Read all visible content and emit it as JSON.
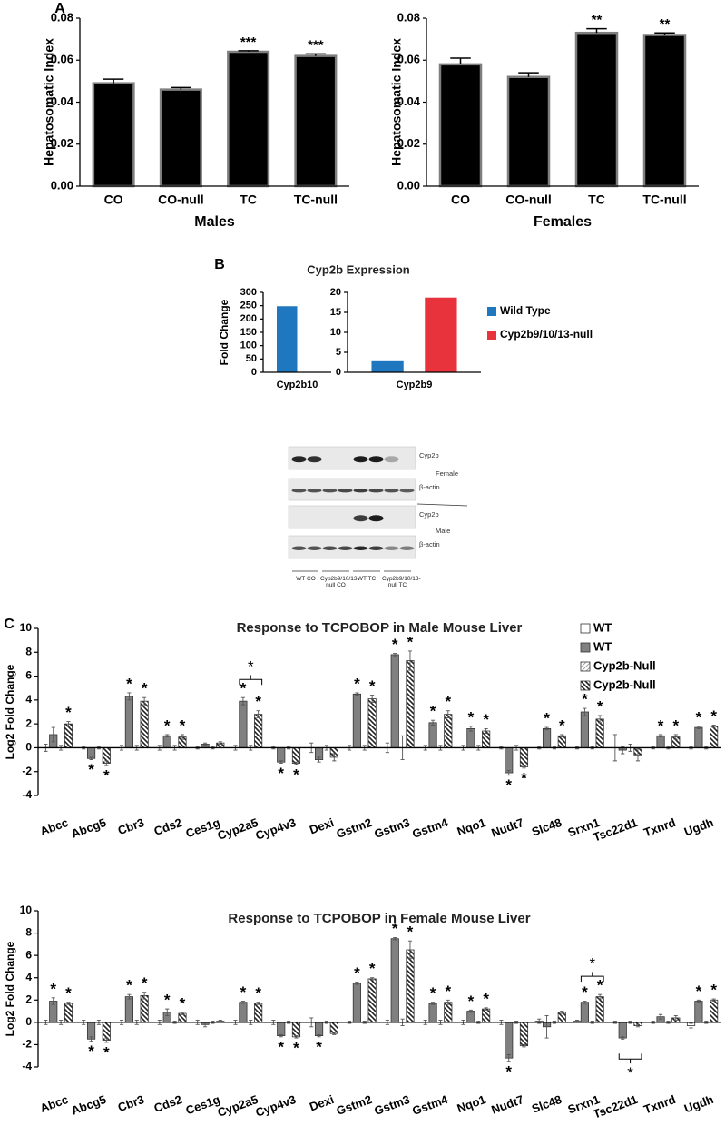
{
  "chart_data": [
    {
      "type": "bar",
      "panel_label": "A",
      "ylabel": "Hepatosomatic Index",
      "xlabel": "Males",
      "categories": [
        "CO",
        "CO-null",
        "TC",
        "TC-null"
      ],
      "values": [
        0.049,
        0.046,
        0.064,
        0.062
      ],
      "errors": [
        0.002,
        0.001,
        0.0005,
        0.001
      ],
      "significance": [
        null,
        null,
        "***",
        "***"
      ],
      "color": "#000000",
      "ylim": [
        0,
        0.08
      ],
      "yticks": [
        {
          "value": 0,
          "label": "0.00"
        },
        0.02,
        0.04,
        0.06,
        0.08
      ]
    },
    {
      "type": "bar",
      "ylabel": "Hepatosomatic Index",
      "xlabel": "Females",
      "categories": [
        "CO",
        "CO-null",
        "TC",
        "TC-null"
      ],
      "values": [
        0.058,
        0.052,
        0.073,
        0.072
      ],
      "errors": [
        0.003,
        0.002,
        0.002,
        0.001
      ],
      "significance": [
        null,
        null,
        "**",
        "**"
      ],
      "color": "#000000",
      "ylim": [
        0,
        0.08
      ],
      "yticks": [
        {
          "value": 0,
          "label": "0.00"
        },
        0.02,
        0.04,
        0.06,
        0.08
      ]
    },
    {
      "type": "bar",
      "panel_label": "B",
      "title": "Cyp2b Expression",
      "ylabel": "Fold Change",
      "categories": [
        "Cyp2b10"
      ],
      "series": [
        {
          "color": "#1f77c0",
          "values": [
            248
          ]
        },
        {
          "color": "#e8333c",
          "values": [
            0
          ]
        }
      ],
      "ylim": [
        0,
        300
      ],
      "yticks": [
        0,
        50,
        100,
        150,
        200,
        250,
        300
      ]
    },
    {
      "type": "bar",
      "categories": [
        "Cyp2b9"
      ],
      "legend": "right",
      "series": [
        {
          "name": "Wild Type",
          "color": "#1f77c0",
          "values": [
            3
          ]
        },
        {
          "name": "Cyp2b9/10/13-null",
          "color": "#e8333c",
          "values": [
            18.7
          ]
        }
      ],
      "ylim": [
        0,
        20
      ],
      "yticks": [
        0,
        5,
        10,
        15,
        20
      ]
    },
    {
      "type": "bar",
      "panel_label": "C",
      "title": "Response to TCPOBOP in Male Mouse Liver",
      "ylabel": "Log2 Fold Change",
      "legend": "top-right",
      "categories": [
        "Abcc",
        "Abcg5",
        "Cbr3",
        "Cds2",
        "Ces1g",
        "Cyp2a5",
        "Cyp4v3",
        "Dexi",
        "Gstm2",
        "Gstm3",
        "Gstm4",
        "Nqo1",
        "Nudt7",
        "Slc48",
        "Srxn1",
        "Tsc22d1",
        "Txnrd",
        "Ugdh"
      ],
      "series": [
        {
          "name": "WT",
          "color": "#ffffff",
          "values": [
            0,
            0,
            0,
            0,
            0,
            0,
            0,
            0,
            0,
            0,
            0,
            0,
            0,
            0,
            0,
            0,
            0,
            0
          ],
          "errors": [
            0.3,
            0.1,
            0.2,
            0.2,
            0.1,
            0.2,
            0.1,
            0.4,
            0.2,
            0.4,
            0.2,
            0.2,
            0.1,
            0.1,
            0.1,
            1.1,
            0.1,
            0.1
          ]
        },
        {
          "name": "WT",
          "color": "#808080",
          "values": [
            1.1,
            -0.9,
            4.3,
            1.0,
            0.3,
            3.9,
            -1.2,
            -1.0,
            4.5,
            7.8,
            2.1,
            1.6,
            -2.1,
            1.6,
            3.0,
            -0.2,
            1.0,
            1.7
          ],
          "errors": [
            0.6,
            0.1,
            0.3,
            0.1,
            0.1,
            0.3,
            0.1,
            0.2,
            0.1,
            0.1,
            0.2,
            0.2,
            0.2,
            0.1,
            0.3,
            0.3,
            0.1,
            0.1
          ],
          "significance": [
            null,
            "*",
            "*",
            "*",
            null,
            "*",
            "*",
            null,
            "*",
            "*",
            "*",
            "*",
            "*",
            "*",
            "*",
            null,
            "*",
            "*"
          ]
        },
        {
          "name": "Cyp2b-Null",
          "color": "#999999",
          "hatch": "/",
          "values": [
            0,
            0,
            0,
            0,
            0,
            0,
            0,
            0,
            0,
            0,
            0,
            0,
            0,
            0,
            0,
            0,
            0,
            0
          ],
          "errors": [
            0.2,
            0.1,
            0.2,
            0.2,
            0.1,
            0.2,
            0.1,
            0.2,
            0.2,
            1.0,
            0.2,
            0.2,
            0.2,
            0.1,
            0.1,
            0.3,
            0.1,
            0.1
          ]
        },
        {
          "name": "Cyp2b-Null",
          "color": "#222222",
          "hatch": "\\",
          "values": [
            2.0,
            -1.3,
            3.9,
            0.9,
            0.4,
            2.8,
            -1.3,
            -0.8,
            4.1,
            7.3,
            2.8,
            1.4,
            -1.6,
            1.0,
            2.4,
            -0.6,
            0.9,
            1.8
          ],
          "errors": [
            0.2,
            0.2,
            0.3,
            0.2,
            0.1,
            0.3,
            0.1,
            0.3,
            0.3,
            0.8,
            0.3,
            0.2,
            0.1,
            0.1,
            0.3,
            0.5,
            0.2,
            0.1
          ],
          "significance": [
            "*",
            "*",
            "*",
            "*",
            null,
            "*",
            "*",
            null,
            "*",
            "*",
            "*",
            "*",
            "*",
            "*",
            "*",
            null,
            "*",
            "*"
          ]
        }
      ],
      "bracket_significance": [
        null,
        null,
        null,
        null,
        null,
        "*",
        null,
        null,
        null,
        null,
        null,
        null,
        null,
        null,
        null,
        null,
        null,
        null
      ],
      "ylim": [
        -4,
        10
      ],
      "yticks": [
        -4,
        -2,
        0,
        2,
        4,
        6,
        8,
        10
      ]
    },
    {
      "type": "bar",
      "title": "Response to TCPOBOP in Female Mouse Liver",
      "ylabel": "Log2 Fold Change",
      "categories": [
        "Abcc",
        "Abcg5",
        "Cbr3",
        "Cds2",
        "Ces1g",
        "Cyp2a5",
        "Cyp4v3",
        "Dexi",
        "Gstm2",
        "Gstm3",
        "Gstm4",
        "Nqo1",
        "Nudt7",
        "Slc48",
        "Srxn1",
        "Tsc22d1",
        "Txnrd",
        "Ugdh"
      ],
      "series": [
        {
          "color": "#ffffff",
          "values": [
            0,
            0,
            0,
            0,
            0,
            0,
            0,
            0,
            0,
            0,
            0,
            0,
            0,
            0.1,
            0.1,
            0,
            0,
            -0.3
          ],
          "errors": [
            0.2,
            0.2,
            0.2,
            0.2,
            0.2,
            0.2,
            0.2,
            0.4,
            0.1,
            0.2,
            0.2,
            0.2,
            0.2,
            0.2,
            0.1,
            0.1,
            0.1,
            0.2
          ]
        },
        {
          "color": "#808080",
          "values": [
            1.9,
            -1.5,
            2.3,
            0.9,
            -0.2,
            1.8,
            -1.2,
            -1.2,
            3.5,
            7.5,
            1.7,
            1.0,
            -3.2,
            -0.4,
            1.8,
            -1.4,
            0.5,
            1.9
          ],
          "errors": [
            0.3,
            0.2,
            0.2,
            0.3,
            0.2,
            0.1,
            0.1,
            0.1,
            0.1,
            0.1,
            0.1,
            0.1,
            0.3,
            1.0,
            0.1,
            0.1,
            0.2,
            0.1
          ],
          "significance": [
            "*",
            "*",
            "*",
            "*",
            null,
            "*",
            "*",
            "*",
            "*",
            "*",
            "*",
            "*",
            "*",
            null,
            "*",
            null,
            null,
            "*"
          ]
        },
        {
          "color": "#999999",
          "hatch": "/",
          "values": [
            0,
            0,
            0,
            0,
            0,
            0,
            0,
            0,
            0,
            0,
            0,
            0,
            0,
            0,
            0,
            0,
            0,
            0
          ],
          "errors": [
            0.2,
            0.2,
            0.2,
            0.1,
            0.1,
            0.2,
            0.1,
            0.1,
            0.1,
            0.3,
            0.2,
            0.1,
            0.1,
            0.1,
            0.1,
            0.1,
            0.1,
            0.1
          ]
        },
        {
          "color": "#222222",
          "hatch": "\\",
          "values": [
            1.7,
            -1.6,
            2.4,
            0.8,
            0.1,
            1.7,
            -1.3,
            -1.0,
            3.9,
            6.5,
            1.8,
            1.2,
            -2.1,
            0.9,
            2.3,
            -0.3,
            0.4,
            2.0
          ],
          "errors": [
            0.1,
            0.2,
            0.3,
            0.1,
            0.1,
            0.1,
            0.1,
            0.1,
            0.1,
            0.8,
            0.2,
            0.1,
            0.1,
            0.1,
            0.2,
            0.1,
            0.2,
            0.1
          ],
          "significance": [
            "*",
            "*",
            "*",
            "*",
            null,
            "*",
            "*",
            null,
            "*",
            "*",
            "*",
            "*",
            null,
            null,
            "*",
            null,
            null,
            "*"
          ]
        }
      ],
      "bracket_significance": [
        null,
        null,
        null,
        null,
        null,
        null,
        null,
        null,
        null,
        null,
        null,
        null,
        null,
        null,
        "*",
        "*",
        null,
        null
      ],
      "ylim": [
        -4,
        10
      ],
      "yticks": [
        -4,
        -2,
        0,
        2,
        4,
        6,
        8,
        10
      ]
    }
  ],
  "blot": {
    "row_labels": [
      "Cyp2b",
      "β-actin",
      "Cyp2b",
      "β-actin"
    ],
    "group_labels": [
      "Female",
      "Male"
    ],
    "lane_labels": [
      "WT CO",
      "Cyp2b9/10/13-null CO",
      "WT TC",
      "Cyp2b9/10/13-null TC"
    ]
  }
}
